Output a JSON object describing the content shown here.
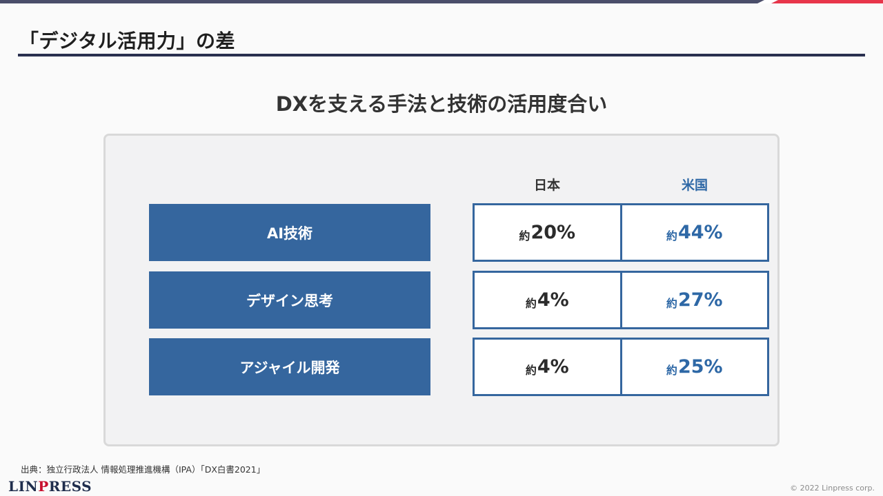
{
  "header": {
    "title": "「デジタル活用力」の差"
  },
  "main": {
    "subtitle": "DXを支える手法と技術の活用度合い",
    "columns": {
      "japan": "日本",
      "usa": "米国"
    },
    "rows": [
      {
        "label": "AI技術",
        "japan": {
          "prefix": "約",
          "value": "20%"
        },
        "usa": {
          "prefix": "約",
          "value": "44%"
        }
      },
      {
        "label": "デザイン思考",
        "japan": {
          "prefix": "約",
          "value": "4%"
        },
        "usa": {
          "prefix": "約",
          "value": "27%"
        }
      },
      {
        "label": "アジャイル開発",
        "japan": {
          "prefix": "約",
          "value": "4%"
        },
        "usa": {
          "prefix": "約",
          "value": "25%"
        }
      }
    ]
  },
  "footer": {
    "source": "出典：独立行政法人 情報処理推進機構（IPA）「DX白書2021」",
    "logo": "LINPRESS",
    "copyright": "© 2022 Linpress corp."
  },
  "colors": {
    "accent": "#35669e",
    "usa_text": "#2e68a6",
    "top_bar_navy": "#2a2f4f",
    "top_bar_red": "#e8354a"
  }
}
